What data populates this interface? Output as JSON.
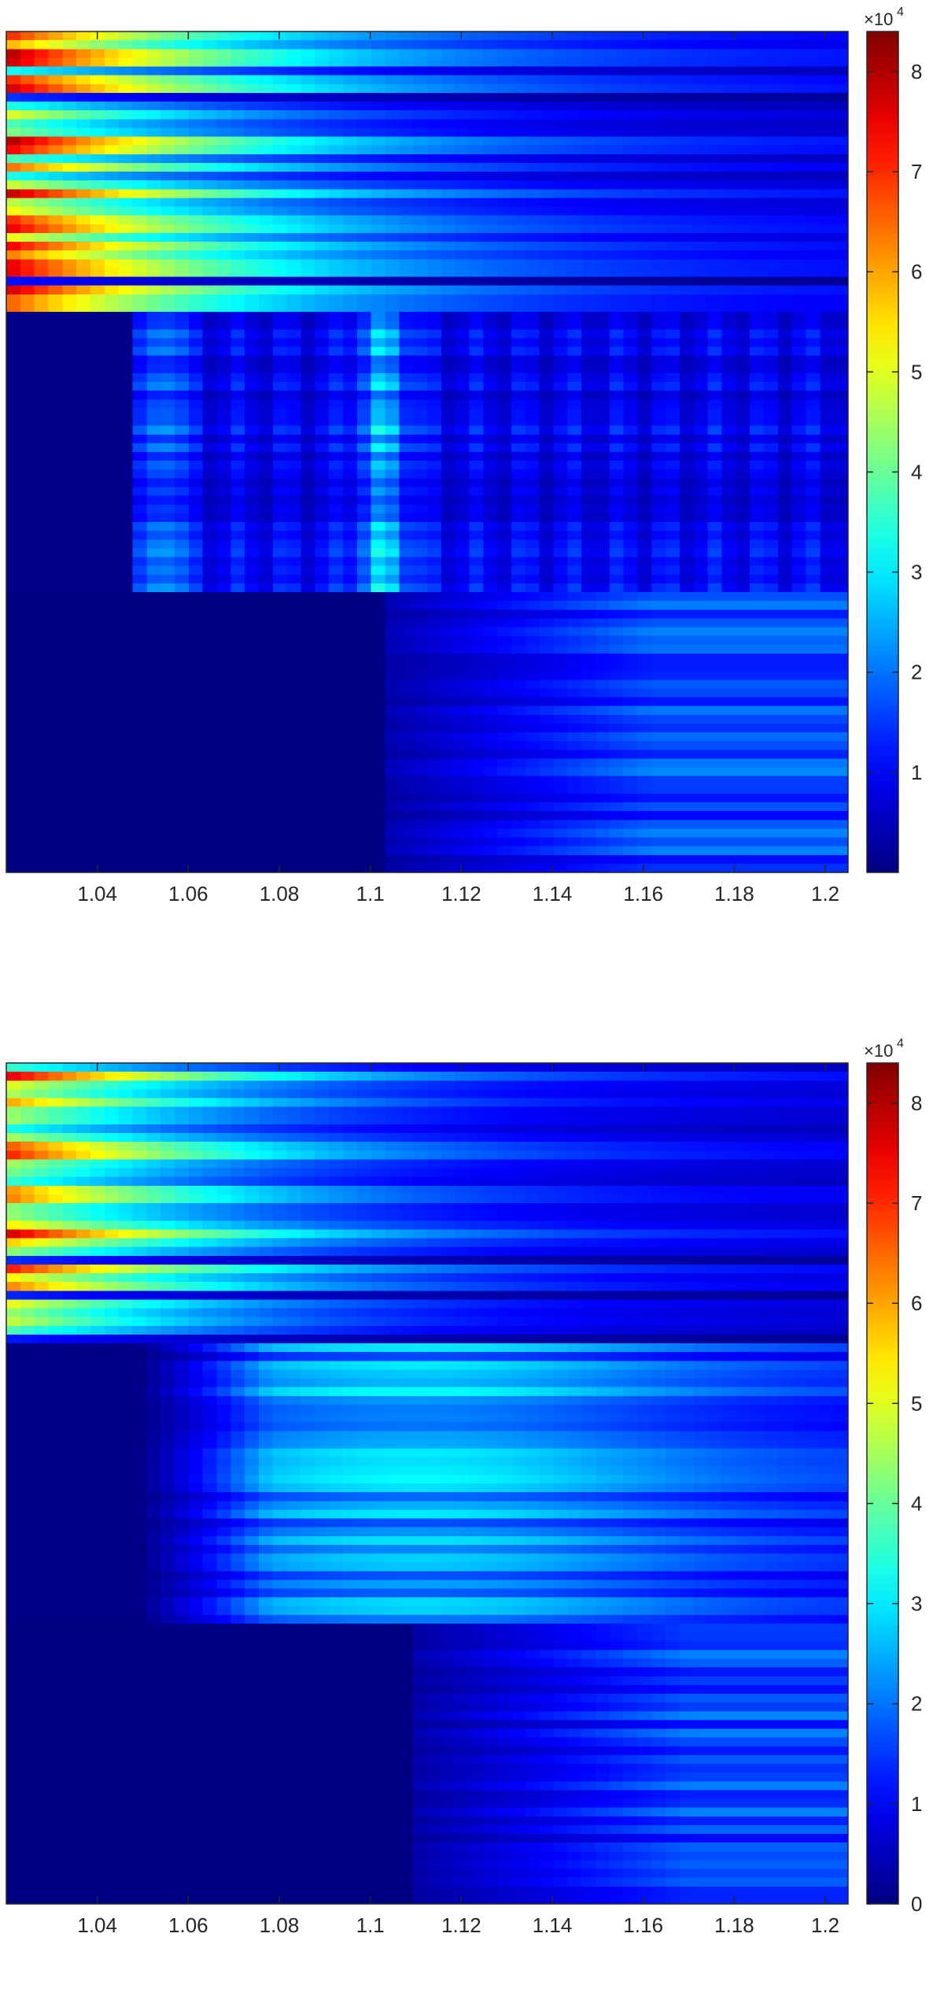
{
  "chart_data": [
    {
      "type": "heatmap",
      "panel": "top",
      "xlim": [
        1.02,
        1.205
      ],
      "x_ticks": [
        1.04,
        1.06,
        1.08,
        1.1,
        1.12,
        1.14,
        1.16,
        1.18,
        1.2
      ],
      "x_tick_labels": [
        "1.04",
        "1.06",
        "1.08",
        "1.1",
        "1.12",
        "1.14",
        "1.16",
        "1.18",
        "1.2"
      ],
      "y_ticks_labeled": false,
      "colorbar": {
        "colormap": "jet",
        "range": [
          0,
          84000
        ],
        "ticks": [
          1,
          2,
          3,
          4,
          5,
          6,
          7,
          8
        ],
        "tick_labels": [
          "1",
          "2",
          "3",
          "4",
          "5",
          "6",
          "7",
          "8"
        ],
        "multiplier_base": "×10",
        "multiplier_exp": "4"
      },
      "regions": [
        {
          "name": "upper band",
          "peak_value_1e4": 8.2,
          "pattern": "high at low x, decaying toward large x"
        },
        {
          "name": "middle band",
          "peak_value_1e4": 3.6,
          "pattern": "zero below x≈1.047, bright columns near 1.052–1.058 and 1.098–1.108"
        },
        {
          "name": "lower band",
          "peak_value_1e4": 2.2,
          "pattern": "zero below x≈1.102, weak stripes increasing toward large x"
        }
      ],
      "grid": false
    },
    {
      "type": "heatmap",
      "panel": "bottom",
      "xlim": [
        1.02,
        1.205
      ],
      "x_ticks": [
        1.04,
        1.06,
        1.08,
        1.1,
        1.12,
        1.14,
        1.16,
        1.18,
        1.2
      ],
      "x_tick_labels": [
        "1.04",
        "1.06",
        "1.08",
        "1.1",
        "1.12",
        "1.14",
        "1.16",
        "1.18",
        "1.2"
      ],
      "y_ticks_labeled": false,
      "colorbar": {
        "colormap": "jet",
        "range": [
          0,
          84000
        ],
        "ticks": [
          0,
          1,
          2,
          3,
          4,
          5,
          6,
          7,
          8
        ],
        "tick_labels": [
          "0",
          "1",
          "2",
          "3",
          "4",
          "5",
          "6",
          "7",
          "8"
        ],
        "multiplier_base": "×10",
        "multiplier_exp": "4"
      },
      "regions": [
        {
          "name": "upper band",
          "peak_value_1e4": 8.2,
          "pattern": "high at low x, decaying toward large x"
        },
        {
          "name": "middle band",
          "peak_value_1e4": 3.2,
          "pattern": "zero below x≈1.048, horizontal stripes"
        },
        {
          "name": "lower band",
          "peak_value_1e4": 2.2,
          "pattern": "zero below x≈1.11, weak stripes increasing toward large x"
        }
      ],
      "grid": false
    }
  ]
}
